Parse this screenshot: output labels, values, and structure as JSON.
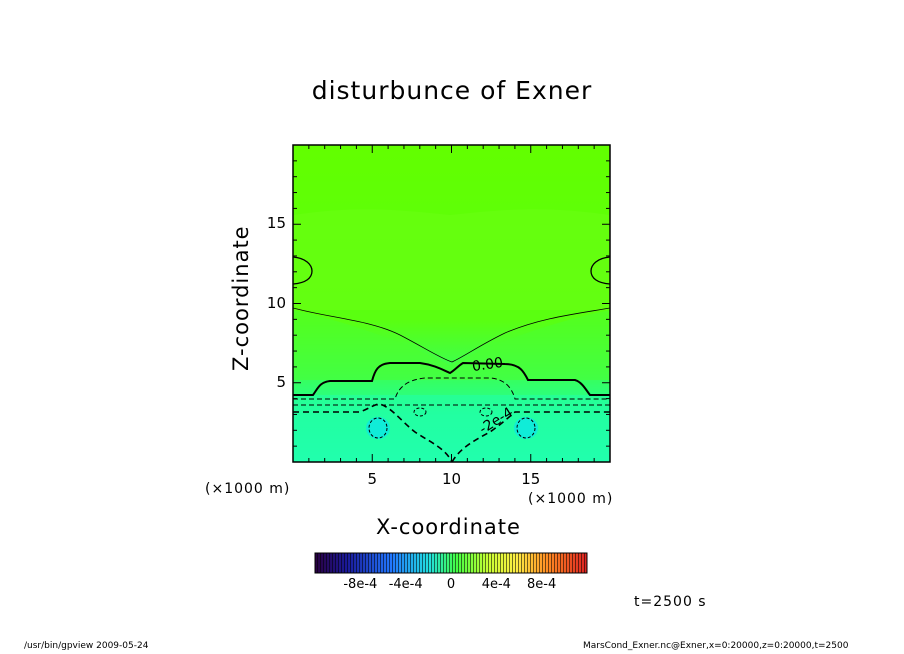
{
  "chart_data": {
    "type": "heatmap",
    "title": "disturbunce of Exner",
    "xlabel": "X-coordinate",
    "ylabel": "Z-coordinate",
    "x_unit": "(×1000 m)",
    "y_unit": "(×1000 m)",
    "xlim": [
      0,
      20
    ],
    "ylim": [
      0,
      20
    ],
    "x_ticks": [
      5,
      10,
      15
    ],
    "y_ticks": [
      5,
      10,
      15
    ],
    "x_tick_labels": [
      "5",
      "10",
      "15"
    ],
    "y_tick_labels": [
      "5",
      "10",
      "15"
    ],
    "contour_labels": [
      {
        "text": "0.00",
        "x": 11.2,
        "z": 6.0
      },
      {
        "text": "-2e-4",
        "x": 13.2,
        "z": 2.5
      }
    ],
    "colorbar": {
      "vmin": -0.0012,
      "vmax": 0.0012,
      "tick_labels": [
        "-8e-4",
        "-4e-4",
        "0",
        "4e-4",
        "8e-4"
      ],
      "tick_values": [
        -0.0008,
        -0.0004,
        0,
        0.0004,
        0.0008
      ]
    },
    "time_label": "t=2500 s"
  },
  "footer": {
    "left": "/usr/bin/gpview   2009-05-24",
    "right": "MarsCond_Exner.nc@Exner,x=0:20000,z=0:20000,t=2500"
  },
  "colors": {
    "field_top": "#66ff00",
    "field_mid": "#33ff66",
    "field_bottom": "#22ffb0",
    "field_cold": "#19f0cc"
  }
}
